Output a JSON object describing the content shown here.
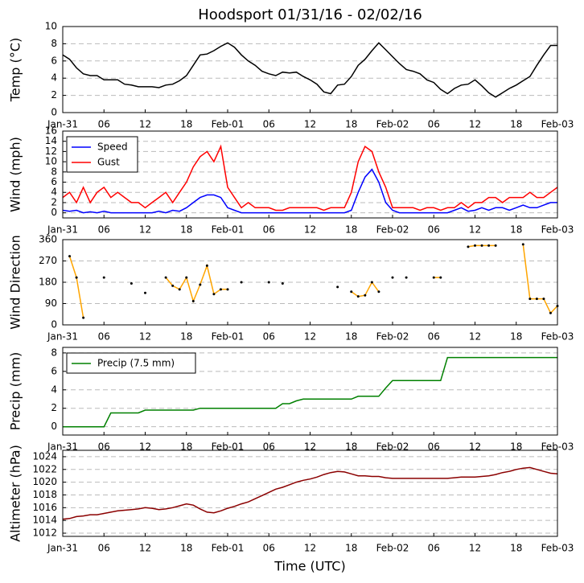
{
  "chart_data": [
    {
      "type": "line",
      "title": "Hoodsport 01/31/16 - 02/02/16",
      "ylabel": "Temp (°C)",
      "xlim": [
        0,
        72
      ],
      "xticks": [
        {
          "value": 0,
          "label": "Jan-31"
        },
        {
          "value": 6,
          "label": "06"
        },
        {
          "value": 12,
          "label": "12"
        },
        {
          "value": 18,
          "label": "18"
        },
        {
          "value": 24,
          "label": "Feb-01"
        },
        {
          "value": 30,
          "label": "06"
        },
        {
          "value": 36,
          "label": "12"
        },
        {
          "value": 42,
          "label": "18"
        },
        {
          "value": 48,
          "label": "Feb-02"
        },
        {
          "value": 54,
          "label": "06"
        },
        {
          "value": 60,
          "label": "12"
        },
        {
          "value": 66,
          "label": "18"
        },
        {
          "value": 72,
          "label": "Feb-03"
        }
      ],
      "ylim": [
        0,
        10
      ],
      "yticks": [
        0,
        2,
        4,
        6,
        8,
        10
      ],
      "grid": true,
      "x": [
        0,
        1,
        2,
        3,
        4,
        5,
        6,
        7,
        8,
        9,
        10,
        11,
        12,
        13,
        14,
        15,
        16,
        17,
        18,
        19,
        20,
        21,
        22,
        23,
        24,
        25,
        26,
        27,
        28,
        29,
        30,
        31,
        32,
        33,
        34,
        35,
        36,
        37,
        38,
        39,
        40,
        41,
        42,
        43,
        44,
        45,
        46,
        47,
        48,
        49,
        50,
        51,
        52,
        53,
        54,
        55,
        56,
        57,
        58,
        59,
        60,
        61,
        62,
        63,
        64,
        65,
        66,
        67,
        68,
        69,
        70,
        71,
        72
      ],
      "series": [
        {
          "color": "#000000",
          "values": [
            6.7,
            6.2,
            5.2,
            4.5,
            4.3,
            4.3,
            3.8,
            3.8,
            3.8,
            3.3,
            3.2,
            3,
            3,
            3,
            2.9,
            3.2,
            3.3,
            3.7,
            4.3,
            5.5,
            6.7,
            6.8,
            7.2,
            7.7,
            8.1,
            7.6,
            6.7,
            6,
            5.5,
            4.8,
            4.5,
            4.3,
            4.7,
            4.6,
            4.7,
            4.2,
            3.8,
            3.3,
            2.4,
            2.2,
            3.2,
            3.3,
            4.2,
            5.5,
            6.2,
            7.2,
            8.1,
            7.3,
            6.5,
            5.7,
            5,
            4.8,
            4.5,
            3.8,
            3.5,
            2.7,
            2.2,
            2.8,
            3.2,
            3.3,
            3.8,
            3.1,
            2.3,
            1.8,
            2.3,
            2.8,
            3.2,
            3.7,
            4.2,
            5.5,
            6.7,
            7.8,
            7.8
          ]
        }
      ]
    },
    {
      "type": "line",
      "ylabel": "Wind (mph)",
      "legend": "upper left",
      "xlim": [
        0,
        72
      ],
      "xticks": [
        {
          "value": 0,
          "label": "Jan-31"
        },
        {
          "value": 6,
          "label": "06"
        },
        {
          "value": 12,
          "label": "12"
        },
        {
          "value": 18,
          "label": "18"
        },
        {
          "value": 24,
          "label": "Feb-01"
        },
        {
          "value": 30,
          "label": "06"
        },
        {
          "value": 36,
          "label": "12"
        },
        {
          "value": 42,
          "label": "18"
        },
        {
          "value": 48,
          "label": "Feb-02"
        },
        {
          "value": 54,
          "label": "06"
        },
        {
          "value": 60,
          "label": "12"
        },
        {
          "value": 66,
          "label": "18"
        },
        {
          "value": 72,
          "label": "Feb-03"
        }
      ],
      "ylim": [
        -1,
        16
      ],
      "yticks": [
        0,
        2,
        4,
        6,
        8,
        10,
        12,
        14,
        16
      ],
      "grid": true,
      "x": [
        0,
        1,
        2,
        3,
        4,
        5,
        6,
        7,
        8,
        9,
        10,
        11,
        12,
        13,
        14,
        15,
        16,
        17,
        18,
        19,
        20,
        21,
        22,
        23,
        24,
        25,
        26,
        27,
        28,
        29,
        30,
        31,
        32,
        33,
        34,
        35,
        36,
        37,
        38,
        39,
        40,
        41,
        42,
        43,
        44,
        45,
        46,
        47,
        48,
        49,
        50,
        51,
        52,
        53,
        54,
        55,
        56,
        57,
        58,
        59,
        60,
        61,
        62,
        63,
        64,
        65,
        66,
        67,
        68,
        69,
        70,
        71,
        72
      ],
      "series": [
        {
          "name": "Speed",
          "color": "#0000ff",
          "values": [
            0.5,
            0.3,
            0.5,
            0,
            0.2,
            0,
            0.3,
            0,
            0,
            0,
            0,
            0,
            0,
            0,
            0.3,
            0,
            0.5,
            0.3,
            1,
            2,
            3,
            3.5,
            3.5,
            3,
            1,
            0.5,
            0,
            0,
            0,
            0,
            0,
            0,
            0,
            0,
            0,
            0,
            0,
            0,
            0,
            0,
            0,
            0,
            0.5,
            4,
            7,
            8.5,
            6,
            2,
            0.5,
            0,
            0,
            0,
            0,
            0,
            0,
            0,
            0,
            0.5,
            1,
            0.3,
            0.5,
            1,
            0.5,
            1,
            1,
            0.5,
            1,
            1.5,
            1,
            1,
            1.5,
            2,
            2
          ]
        },
        {
          "name": "Gust",
          "color": "#ff0000",
          "values": [
            3,
            4,
            2,
            5,
            2,
            4,
            5,
            3,
            4,
            3,
            2,
            2,
            1,
            2,
            3,
            4,
            2,
            4,
            6,
            9,
            11,
            12,
            10,
            13,
            5,
            3,
            1,
            2,
            1,
            1,
            1,
            0.5,
            0.5,
            1,
            1,
            1,
            1,
            1,
            0.5,
            1,
            1,
            1,
            4,
            10,
            13,
            12,
            8,
            5,
            1,
            1,
            1,
            1,
            0.5,
            1,
            1,
            0.5,
            1,
            1,
            2,
            1,
            2,
            2,
            3,
            3,
            2,
            3,
            3,
            3,
            4,
            3,
            3,
            4,
            5
          ]
        }
      ]
    },
    {
      "type": "line",
      "ylabel": "Wind Direction",
      "markers": true,
      "xlim": [
        0,
        72
      ],
      "xticks": [
        {
          "value": 0,
          "label": "Jan-31"
        },
        {
          "value": 6,
          "label": "06"
        },
        {
          "value": 12,
          "label": "12"
        },
        {
          "value": 18,
          "label": "18"
        },
        {
          "value": 24,
          "label": "Feb-01"
        },
        {
          "value": 30,
          "label": "06"
        },
        {
          "value": 36,
          "label": "12"
        },
        {
          "value": 42,
          "label": "18"
        },
        {
          "value": 48,
          "label": "Feb-02"
        },
        {
          "value": 54,
          "label": "06"
        },
        {
          "value": 60,
          "label": "12"
        },
        {
          "value": 66,
          "label": "18"
        },
        {
          "value": 72,
          "label": "Feb-03"
        }
      ],
      "ylim": [
        0,
        360
      ],
      "yticks": [
        0,
        90,
        180,
        270,
        360
      ],
      "grid": true,
      "x": [
        0,
        1,
        2,
        3,
        4,
        5,
        6,
        7,
        8,
        9,
        10,
        11,
        12,
        13,
        14,
        15,
        16,
        17,
        18,
        19,
        20,
        21,
        22,
        23,
        24,
        25,
        26,
        27,
        28,
        29,
        30,
        31,
        32,
        33,
        34,
        35,
        36,
        37,
        38,
        39,
        40,
        41,
        42,
        43,
        44,
        45,
        46,
        47,
        48,
        49,
        50,
        51,
        52,
        53,
        54,
        55,
        56,
        57,
        58,
        59,
        60,
        61,
        62,
        63,
        64,
        65,
        66,
        67,
        68,
        69,
        70,
        71,
        72
      ],
      "series": [
        {
          "color": "#ffa500",
          "values": [
            null,
            290,
            200,
            30,
            null,
            null,
            200,
            null,
            null,
            null,
            175,
            null,
            135,
            null,
            null,
            200,
            165,
            150,
            200,
            100,
            170,
            250,
            130,
            150,
            150,
            null,
            180,
            null,
            null,
            null,
            180,
            null,
            175,
            null,
            null,
            null,
            null,
            null,
            null,
            null,
            160,
            null,
            140,
            120,
            125,
            180,
            140,
            null,
            200,
            null,
            200,
            null,
            null,
            null,
            200,
            200,
            null,
            null,
            null,
            330,
            335,
            335,
            335,
            335,
            null,
            null,
            null,
            340,
            110,
            110,
            110,
            50,
            80
          ]
        }
      ]
    },
    {
      "type": "line",
      "ylabel": "Precip (mm)",
      "legend": "upper left",
      "xlim": [
        0,
        72
      ],
      "xticks": [
        {
          "value": 0,
          "label": "Jan-31"
        },
        {
          "value": 6,
          "label": "06"
        },
        {
          "value": 12,
          "label": "12"
        },
        {
          "value": 18,
          "label": "18"
        },
        {
          "value": 24,
          "label": "Feb-01"
        },
        {
          "value": 30,
          "label": "06"
        },
        {
          "value": 36,
          "label": "12"
        },
        {
          "value": 42,
          "label": "18"
        },
        {
          "value": 48,
          "label": "Feb-02"
        },
        {
          "value": 54,
          "label": "06"
        },
        {
          "value": 60,
          "label": "12"
        },
        {
          "value": 66,
          "label": "18"
        },
        {
          "value": 72,
          "label": "Feb-03"
        }
      ],
      "ylim": [
        -0.9,
        8.6
      ],
      "yticks": [
        0,
        2,
        4,
        6,
        8
      ],
      "grid": true,
      "x": [
        0,
        1,
        2,
        3,
        4,
        5,
        6,
        7,
        8,
        9,
        10,
        11,
        12,
        13,
        14,
        15,
        16,
        17,
        18,
        19,
        20,
        21,
        22,
        23,
        24,
        25,
        26,
        27,
        28,
        29,
        30,
        31,
        32,
        33,
        34,
        35,
        36,
        37,
        38,
        39,
        40,
        41,
        42,
        43,
        44,
        45,
        46,
        47,
        48,
        49,
        50,
        51,
        52,
        53,
        54,
        55,
        56,
        57,
        58,
        59,
        60,
        61,
        62,
        63,
        64,
        65,
        66,
        67,
        68,
        69,
        70,
        71,
        72
      ],
      "series": [
        {
          "name": "Precip (7.5 mm)",
          "color": "#008000",
          "values": [
            0,
            0,
            0,
            0,
            0,
            0,
            0,
            1.5,
            1.5,
            1.5,
            1.5,
            1.5,
            1.8,
            1.8,
            1.8,
            1.8,
            1.8,
            1.8,
            1.8,
            1.8,
            2,
            2,
            2,
            2,
            2,
            2,
            2,
            2,
            2,
            2,
            2,
            2,
            2.5,
            2.5,
            2.8,
            3,
            3,
            3,
            3,
            3,
            3,
            3,
            3,
            3.3,
            3.3,
            3.3,
            3.3,
            4.2,
            5,
            5,
            5,
            5,
            5,
            5,
            5,
            5,
            7.5,
            7.5,
            7.5,
            7.5,
            7.5,
            7.5,
            7.5,
            7.5,
            7.5,
            7.5,
            7.5,
            7.5,
            7.5,
            7.5,
            7.5,
            7.5,
            7.5
          ]
        }
      ]
    },
    {
      "type": "line",
      "ylabel": "Altimeter (hPa)",
      "xlabel": "Time (UTC)",
      "xlim": [
        0,
        72
      ],
      "xticks": [
        {
          "value": 0,
          "label": "Jan-31"
        },
        {
          "value": 6,
          "label": "06"
        },
        {
          "value": 12,
          "label": "12"
        },
        {
          "value": 18,
          "label": "18"
        },
        {
          "value": 24,
          "label": "Feb-01"
        },
        {
          "value": 30,
          "label": "06"
        },
        {
          "value": 36,
          "label": "12"
        },
        {
          "value": 42,
          "label": "18"
        },
        {
          "value": 48,
          "label": "Feb-02"
        },
        {
          "value": 54,
          "label": "06"
        },
        {
          "value": 60,
          "label": "12"
        },
        {
          "value": 66,
          "label": "18"
        },
        {
          "value": 72,
          "label": "Feb-03"
        }
      ],
      "ylim": [
        1011.5,
        1025
      ],
      "yticks": [
        1012,
        1014,
        1016,
        1018,
        1020,
        1022,
        1024
      ],
      "grid": true,
      "x": [
        0,
        1,
        2,
        3,
        4,
        5,
        6,
        7,
        8,
        9,
        10,
        11,
        12,
        13,
        14,
        15,
        16,
        17,
        18,
        19,
        20,
        21,
        22,
        23,
        24,
        25,
        26,
        27,
        28,
        29,
        30,
        31,
        32,
        33,
        34,
        35,
        36,
        37,
        38,
        39,
        40,
        41,
        42,
        43,
        44,
        45,
        46,
        47,
        48,
        49,
        50,
        51,
        52,
        53,
        54,
        55,
        56,
        57,
        58,
        59,
        60,
        61,
        62,
        63,
        64,
        65,
        66,
        67,
        68,
        69,
        70,
        71,
        72
      ],
      "series": [
        {
          "color": "#8b0000",
          "values": [
            1014.2,
            1014.3,
            1014.6,
            1014.7,
            1014.9,
            1014.9,
            1015.1,
            1015.3,
            1015.5,
            1015.6,
            1015.7,
            1015.8,
            1016,
            1015.9,
            1015.7,
            1015.8,
            1016,
            1016.3,
            1016.6,
            1016.4,
            1015.8,
            1015.3,
            1015.2,
            1015.5,
            1015.9,
            1016.2,
            1016.6,
            1016.9,
            1017.4,
            1017.9,
            1018.4,
            1018.9,
            1019.2,
            1019.6,
            1020,
            1020.3,
            1020.5,
            1020.8,
            1021.2,
            1021.5,
            1021.7,
            1021.6,
            1021.3,
            1021,
            1021,
            1020.9,
            1020.9,
            1020.7,
            1020.6,
            1020.6,
            1020.6,
            1020.6,
            1020.6,
            1020.6,
            1020.6,
            1020.6,
            1020.6,
            1020.7,
            1020.8,
            1020.8,
            1020.8,
            1020.9,
            1021,
            1021.2,
            1021.5,
            1021.7,
            1022,
            1022.2,
            1022.3,
            1022,
            1021.7,
            1021.4,
            1021.3
          ]
        }
      ]
    }
  ]
}
